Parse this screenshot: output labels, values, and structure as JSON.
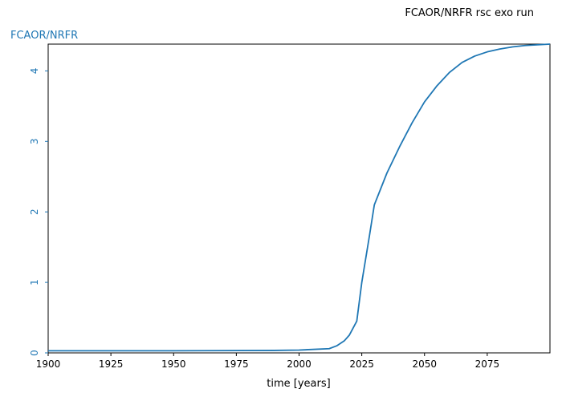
{
  "chart_data": {
    "type": "line",
    "title": "FCAOR/NRFR rsc exo run",
    "xlabel": "time [years]",
    "ylabel": "FCAOR/NRFR",
    "xlim": [
      1900,
      2100
    ],
    "ylim": [
      0,
      4.38
    ],
    "xticks": [
      "1900",
      "1925",
      "1950",
      "1975",
      "2000",
      "2025",
      "2050",
      "2075"
    ],
    "yticks": [
      "0",
      "1",
      "2",
      "3",
      "4"
    ],
    "grid": false,
    "series": [
      {
        "color": "#1f77b4",
        "x": [
          1900,
          1950,
          1990,
          2000,
          2012,
          2015,
          2018,
          2020,
          2023,
          2025,
          2028,
          2030,
          2035,
          2040,
          2045,
          2050,
          2055,
          2060,
          2065,
          2070,
          2075,
          2080,
          2085,
          2090,
          2095,
          2100
        ],
        "y": [
          0.03,
          0.03,
          0.035,
          0.04,
          0.06,
          0.1,
          0.17,
          0.25,
          0.45,
          1.0,
          1.65,
          2.1,
          2.55,
          2.92,
          3.26,
          3.56,
          3.79,
          3.98,
          4.12,
          4.21,
          4.27,
          4.31,
          4.34,
          4.36,
          4.37,
          4.38
        ]
      }
    ]
  },
  "colors": {
    "axis_accent": "#1f77b4",
    "frame": "#000000"
  }
}
